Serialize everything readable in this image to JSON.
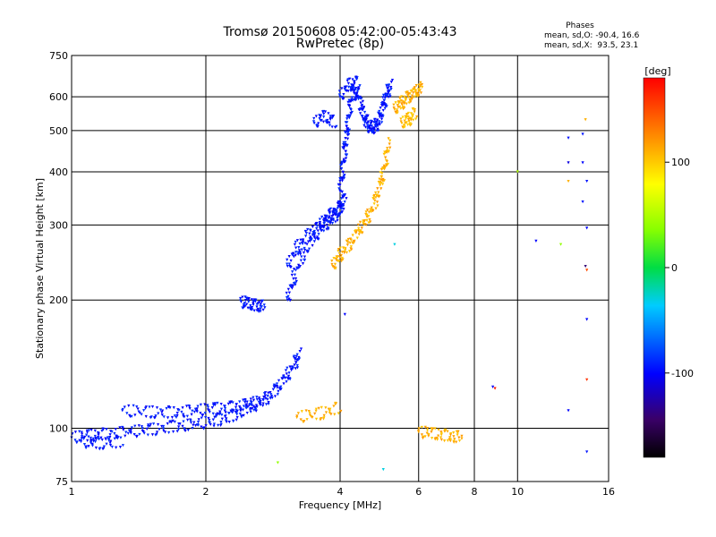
{
  "chart_data": {
    "type": "scatter",
    "title": "Tromsø 20150608 05:42:00-05:43:43",
    "subtitle": "RwPretec (8p)",
    "xlabel": "Frequency [MHz]",
    "ylabel": "Stationary phase Virtual Height [km]",
    "x_scale": "log",
    "y_scale": "log",
    "xlim": [
      1,
      16
    ],
    "ylim": [
      75,
      750
    ],
    "x_ticks": [
      "1",
      "2",
      "4",
      "6",
      "8",
      "10",
      "16"
    ],
    "x_tick_values": [
      1,
      2,
      4,
      6,
      8,
      10,
      16
    ],
    "y_ticks": [
      "75",
      "100",
      "200",
      "300",
      "400",
      "500",
      "600",
      "750"
    ],
    "y_tick_values": [
      75,
      100,
      200,
      300,
      400,
      500,
      600,
      750
    ],
    "grid": true,
    "info": {
      "heading": "Phases",
      "line1": "mean, sd,O: -90.4, 16.6",
      "line2": "mean, sd,X:  93.5, 23.1"
    },
    "colorbar": {
      "label": "[deg]",
      "range": [
        -180,
        180
      ],
      "ticks": [
        "100",
        "0",
        "-100"
      ],
      "tick_values": [
        100,
        0,
        -100
      ]
    },
    "traces": [
      {
        "phase": -95,
        "x": [
          1.0,
          1.1,
          1.2,
          1.35,
          1.5,
          1.7,
          1.9,
          2.1,
          2.3,
          2.5,
          2.7,
          2.85,
          3.0,
          3.15,
          3.25
        ],
        "y": [
          95,
          96,
          97,
          98,
          99,
          101,
          102,
          104,
          107,
          111,
          116,
          122,
          130,
          140,
          150
        ]
      },
      {
        "phase": -95,
        "x": [
          1.05,
          1.15,
          1.3
        ],
        "y": [
          93,
          92,
          93
        ]
      },
      {
        "phase": -95,
        "x": [
          1.3,
          1.5,
          1.7,
          1.9,
          2.1,
          2.3,
          2.5,
          2.7
        ],
        "y": [
          110,
          109,
          109,
          110,
          111,
          112,
          114,
          116
        ]
      },
      {
        "phase": -95,
        "x": [
          2.4,
          2.5,
          2.6,
          2.7
        ],
        "y": [
          198,
          196,
          194,
          193
        ]
      },
      {
        "phase": -95,
        "x": [
          3.05,
          3.15,
          3.3,
          3.5,
          3.7,
          3.9,
          4.05
        ],
        "y": [
          200,
          225,
          255,
          280,
          300,
          315,
          330
        ]
      },
      {
        "phase": -95,
        "x": [
          3.05,
          3.2,
          3.4,
          3.6,
          3.8,
          4.0,
          4.1
        ],
        "y": [
          240,
          265,
          285,
          300,
          315,
          330,
          350
        ]
      },
      {
        "phase": -95,
        "x": [
          3.5,
          3.7,
          3.9
        ],
        "y": [
          520,
          540,
          520
        ]
      },
      {
        "phase": -95,
        "x": [
          4.0,
          4.05,
          4.1,
          4.15,
          4.2,
          4.3,
          4.4,
          4.5,
          4.6,
          4.7,
          4.8,
          4.9,
          5.0,
          5.1,
          5.2
        ],
        "y": [
          360,
          400,
          450,
          500,
          560,
          620,
          600,
          550,
          520,
          505,
          510,
          530,
          570,
          610,
          640
        ]
      },
      {
        "phase": -95,
        "x": [
          4.0,
          4.2,
          4.4
        ],
        "y": [
          600,
          640,
          650
        ]
      },
      {
        "phase": 110,
        "x": [
          3.85,
          4.0,
          4.2,
          4.4,
          4.6,
          4.8,
          4.95,
          5.05,
          5.15
        ],
        "y": [
          240,
          255,
          270,
          290,
          310,
          340,
          380,
          420,
          470
        ]
      },
      {
        "phase": 110,
        "x": [
          5.3,
          5.5,
          5.7,
          5.9,
          6.1
        ],
        "y": [
          560,
          580,
          600,
          615,
          630
        ]
      },
      {
        "phase": 105,
        "x": [
          5.5,
          5.7,
          5.9
        ],
        "y": [
          520,
          530,
          550
        ]
      },
      {
        "phase": 110,
        "x": [
          6.0,
          6.5,
          7.0,
          7.5
        ],
        "y": [
          98,
          97,
          96,
          95
        ]
      },
      {
        "phase": 110,
        "x": [
          3.2,
          3.6,
          4.0
        ],
        "y": [
          106,
          108,
          112
        ]
      }
    ],
    "scatter": [
      {
        "x": 13.0,
        "y": 480,
        "phase": -95
      },
      {
        "x": 13.0,
        "y": 420,
        "phase": -110
      },
      {
        "x": 13.0,
        "y": 380,
        "phase": 110
      },
      {
        "x": 14.0,
        "y": 490,
        "phase": -95
      },
      {
        "x": 14.0,
        "y": 420,
        "phase": -100
      },
      {
        "x": 14.0,
        "y": 340,
        "phase": -95
      },
      {
        "x": 14.2,
        "y": 530,
        "phase": 110
      },
      {
        "x": 14.3,
        "y": 380,
        "phase": -95
      },
      {
        "x": 14.3,
        "y": 295,
        "phase": -100
      },
      {
        "x": 14.2,
        "y": 240,
        "phase": -140
      },
      {
        "x": 14.3,
        "y": 235,
        "phase": 150
      },
      {
        "x": 14.3,
        "y": 180,
        "phase": -100
      },
      {
        "x": 14.3,
        "y": 130,
        "phase": 160
      },
      {
        "x": 14.3,
        "y": 88,
        "phase": -95
      },
      {
        "x": 13.0,
        "y": 110,
        "phase": -100
      },
      {
        "x": 11.0,
        "y": 275,
        "phase": -100
      },
      {
        "x": 12.5,
        "y": 270,
        "phase": 40
      },
      {
        "x": 10.0,
        "y": 400,
        "phase": 50
      },
      {
        "x": 8.8,
        "y": 125,
        "phase": -100
      },
      {
        "x": 8.9,
        "y": 124,
        "phase": 170
      },
      {
        "x": 4.1,
        "y": 185,
        "phase": -100
      },
      {
        "x": 5.3,
        "y": 270,
        "phase": -30
      },
      {
        "x": 2.9,
        "y": 83,
        "phase": 40
      },
      {
        "x": 5.0,
        "y": 80,
        "phase": -30
      }
    ]
  }
}
